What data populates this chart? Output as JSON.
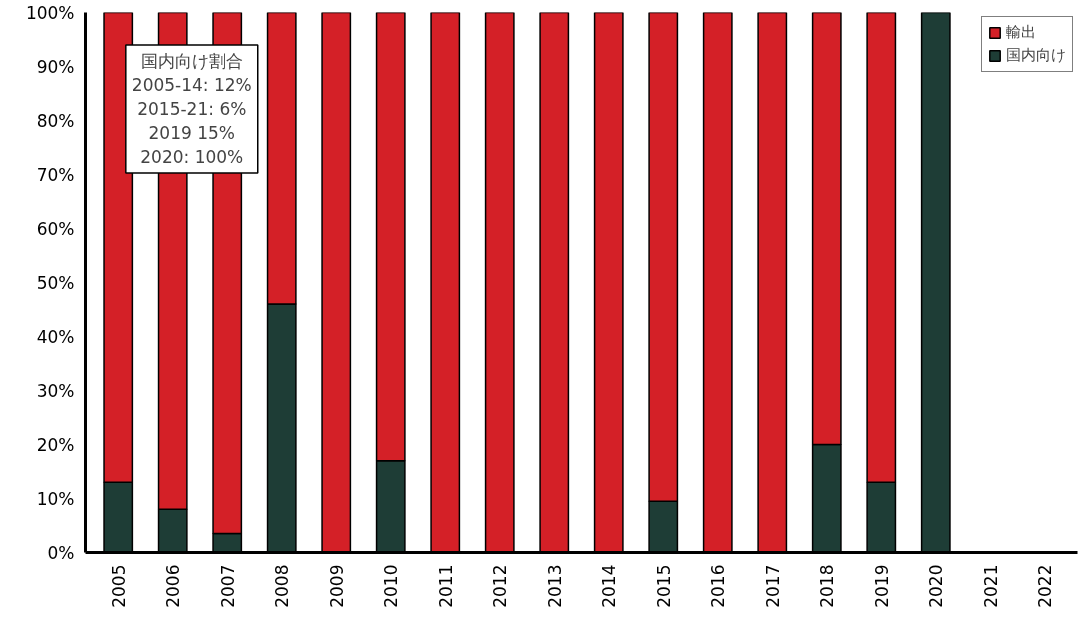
{
  "chart_data": {
    "type": "bar",
    "stacked": true,
    "categories": [
      "2005",
      "2006",
      "2007",
      "2008",
      "2009",
      "2010",
      "2011",
      "2012",
      "2013",
      "2014",
      "2015",
      "2016",
      "2017",
      "2018",
      "2019",
      "2020",
      "2021",
      "2022"
    ],
    "series": [
      {
        "name": "国内向け",
        "color": "#1e3d36",
        "values": [
          13,
          8,
          3.5,
          46,
          0,
          17,
          0,
          0,
          0,
          0,
          9.5,
          0,
          0,
          20,
          13,
          100,
          null,
          null
        ]
      },
      {
        "name": "輸出",
        "color": "#d42027",
        "values": [
          87,
          92,
          96.5,
          54,
          100,
          83,
          100,
          100,
          100,
          100,
          90.5,
          100,
          100,
          80,
          87,
          0,
          null,
          null
        ]
      }
    ],
    "ylim": [
      0,
      100
    ],
    "yticks": [
      {
        "value": 0,
        "label": "0%"
      },
      {
        "value": 10,
        "label": "10%"
      },
      {
        "value": 20,
        "label": "20%"
      },
      {
        "value": 30,
        "label": "30%"
      },
      {
        "value": 40,
        "label": "40%"
      },
      {
        "value": 50,
        "label": "50%"
      },
      {
        "value": 60,
        "label": "60%"
      },
      {
        "value": 70,
        "label": "70%"
      },
      {
        "value": 80,
        "label": "80%"
      },
      {
        "value": 90,
        "label": "90%"
      },
      {
        "value": 100,
        "label": "100%"
      }
    ],
    "grid": false,
    "legend": "top right",
    "annotations": [
      "国内向け割合",
      "2005-14: 12%",
      "2015-21: 6%",
      "2019 15%",
      "2020: 100%"
    ]
  }
}
